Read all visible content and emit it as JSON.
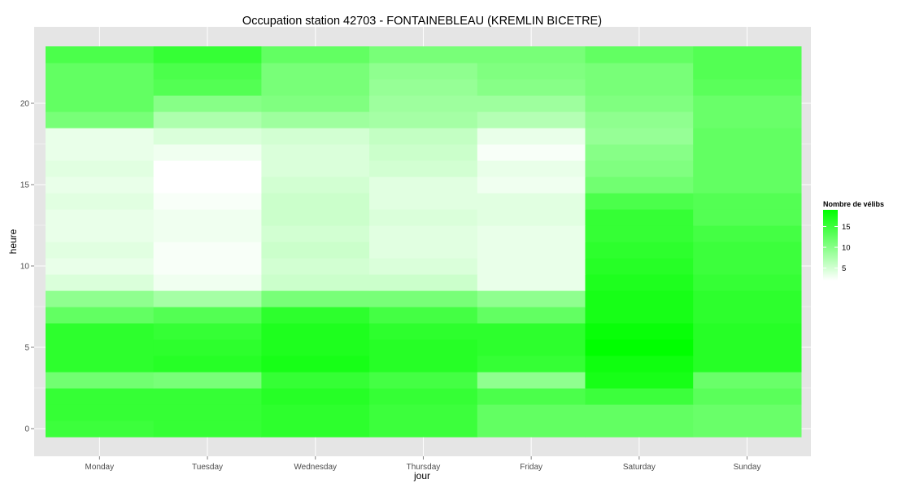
{
  "chart_data": {
    "type": "heatmap",
    "title": "Occupation station 42703 - FONTAINEBLEAU (KREMLIN BICETRE)",
    "xlabel": "jour",
    "ylabel": "heure",
    "x_categories": [
      "Monday",
      "Tuesday",
      "Wednesday",
      "Thursday",
      "Friday",
      "Saturday",
      "Sunday"
    ],
    "y_hours": [
      0,
      1,
      2,
      3,
      4,
      5,
      6,
      7,
      8,
      9,
      10,
      11,
      12,
      13,
      14,
      15,
      16,
      17,
      18,
      19,
      20,
      21,
      22,
      23
    ],
    "y_ticks": [
      0,
      5,
      10,
      15,
      20
    ],
    "ylim": [
      -0.5,
      23.5
    ],
    "values": [
      [
        15.0,
        15.5,
        16.0,
        15.0,
        12.5,
        12.5,
        12.0
      ],
      [
        15.5,
        15.5,
        16.0,
        15.0,
        12.5,
        12.5,
        12.0
      ],
      [
        15.5,
        15.5,
        16.5,
        15.5,
        14.0,
        15.0,
        13.0
      ],
      [
        11.5,
        11.0,
        15.5,
        14.5,
        9.5,
        17.5,
        12.0
      ],
      [
        16.0,
        16.5,
        17.5,
        16.5,
        15.5,
        18.0,
        16.5
      ],
      [
        16.0,
        16.0,
        17.0,
        16.5,
        16.0,
        19.0,
        16.5
      ],
      [
        16.0,
        15.5,
        17.0,
        16.0,
        16.0,
        18.5,
        16.5
      ],
      [
        12.5,
        13.5,
        16.0,
        14.5,
        12.5,
        17.5,
        16.0
      ],
      [
        9.5,
        8.0,
        11.0,
        11.0,
        9.5,
        17.5,
        16.0
      ],
      [
        4.5,
        3.0,
        5.5,
        5.5,
        3.5,
        17.0,
        15.5
      ],
      [
        3.5,
        2.5,
        5.0,
        4.5,
        3.5,
        16.5,
        15.0
      ],
      [
        4.0,
        2.5,
        5.5,
        4.0,
        3.5,
        16.0,
        15.0
      ],
      [
        3.5,
        3.0,
        5.0,
        4.0,
        3.5,
        15.5,
        14.5
      ],
      [
        3.5,
        3.0,
        5.5,
        4.5,
        4.0,
        15.5,
        13.5
      ],
      [
        4.0,
        2.5,
        5.5,
        4.0,
        4.0,
        14.0,
        13.5
      ],
      [
        3.5,
        2.0,
        5.0,
        4.0,
        3.0,
        11.5,
        12.5
      ],
      [
        4.0,
        2.0,
        4.5,
        5.0,
        3.5,
        10.5,
        12.5
      ],
      [
        3.5,
        3.0,
        4.5,
        5.5,
        2.5,
        10.0,
        12.5
      ],
      [
        3.5,
        4.5,
        5.0,
        6.0,
        3.5,
        9.0,
        12.5
      ],
      [
        11.0,
        7.5,
        8.5,
        8.0,
        7.0,
        9.5,
        12.0
      ],
      [
        12.5,
        10.0,
        10.5,
        8.5,
        8.5,
        10.5,
        12.0
      ],
      [
        12.5,
        13.5,
        11.0,
        9.0,
        10.0,
        11.0,
        13.0
      ],
      [
        12.5,
        14.0,
        11.0,
        9.5,
        10.5,
        11.0,
        13.5
      ],
      [
        14.0,
        15.5,
        12.5,
        11.0,
        11.0,
        12.5,
        13.5
      ]
    ],
    "legend": {
      "title": "Nombre de vélibs",
      "ticks": [
        5,
        10,
        15
      ],
      "range": [
        2,
        19
      ],
      "low_color": "#ffffff",
      "high_color": "#00ff00"
    },
    "panel_background": "#e5e5e5",
    "grid_color": "#ffffff",
    "grid": true,
    "legend_position": "right"
  }
}
